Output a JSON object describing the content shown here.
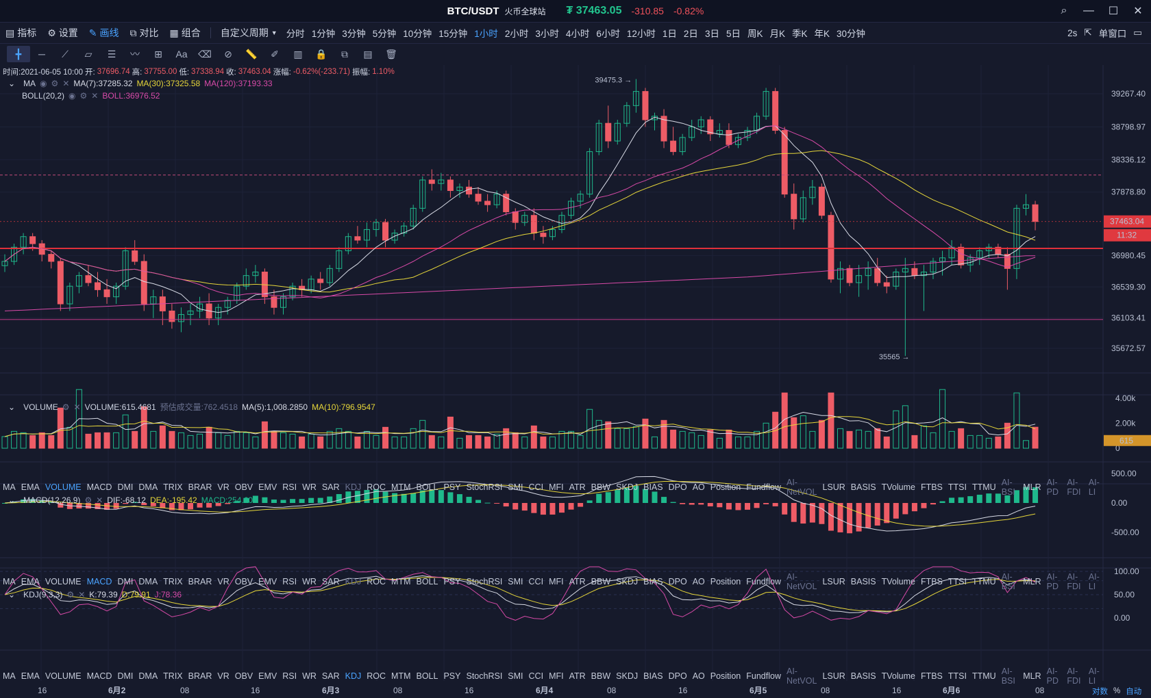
{
  "window": {
    "symbol": "BTC/USDT",
    "exchange": "火币全球站",
    "price": "₮ 37463.05",
    "change": "-310.85",
    "change_pct": "-0.82%"
  },
  "toolbar": {
    "indicator": "指标",
    "settings": "设置",
    "draw": "画线",
    "compare": "对比",
    "combo": "组合",
    "custom_period": "自定义周期",
    "periods": [
      "分时",
      "1分钟",
      "3分钟",
      "5分钟",
      "10分钟",
      "15分钟",
      "1小时",
      "2小时",
      "3小时",
      "4小时",
      "6小时",
      "12小时",
      "1日",
      "2日",
      "3日",
      "5日",
      "周K",
      "月K",
      "季K",
      "年K",
      "30分钟"
    ],
    "active_period": "1小时",
    "refresh": "2s",
    "single_window": "单窗口"
  },
  "ohlc": {
    "time": "时间:2021-06-05 10:00",
    "open_lbl": "开:",
    "open": "37696.74",
    "high_lbl": "高:",
    "high": "37755.00",
    "low_lbl": "低:",
    "low": "37338.94",
    "close_lbl": "收:",
    "close": "37463.04",
    "chg_lbl": "涨幅:",
    "chg": "-0.62%(-233.71)",
    "amp_lbl": "振幅:",
    "amp": "1.10%"
  },
  "ma_legend": {
    "name": "MA",
    "ma7": "MA(7):37285.32",
    "ma30": "MA(30):37325.58",
    "ma120": "MA(120):37193.33"
  },
  "boll_legend": {
    "name": "BOLL(20,2)",
    "boll": "BOLL:36976.52"
  },
  "price_axis": [
    "39267.40",
    "38798.97",
    "38336.12",
    "37878.80",
    "37463.04",
    "36980.45",
    "36539.30",
    "36103.41",
    "35672.57"
  ],
  "last_price_tag": "37463.04",
  "countdown_tag": "11:32",
  "high_marker": "39475.3",
  "low_marker": "35565",
  "volume_legend": {
    "name": "VOLUME",
    "vol": "VOLUME:615.4681",
    "est_lbl": "预估成交量:",
    "est": "762.4518",
    "ma5": "MA(5):1,008.2850",
    "ma10": "MA(10):796.9547"
  },
  "volume_axis": [
    "4.00k",
    "2.00k",
    "0"
  ],
  "volume_tag": "615",
  "indicator_tabs": [
    "MA",
    "EMA",
    "VOLUME",
    "MACD",
    "DMI",
    "DMA",
    "TRIX",
    "BRAR",
    "VR",
    "OBV",
    "EMV",
    "RSI",
    "WR",
    "SAR",
    "KDJ",
    "ROC",
    "MTM",
    "BOLL",
    "PSY",
    "StochRSI",
    "SMI",
    "CCI",
    "MFI",
    "ATR",
    "BBW",
    "SKDJ",
    "BIAS",
    "DPO",
    "AO",
    "Position",
    "Fundflow",
    "AI-NetVOL",
    "LSUR",
    "BASIS",
    "TVolume",
    "FTBS",
    "TTSI",
    "TTMU",
    "AI-BSI",
    "MLR",
    "AI-PD",
    "AI-FDI",
    "AI-LI"
  ],
  "macd_legend": {
    "name": "MACD(12,26,9)",
    "dif": "DIF:-68.12",
    "dea": "DEA:-195.42",
    "macd": "MACD:254.60"
  },
  "macd_axis": [
    "500.00",
    "0.00",
    "-500.00"
  ],
  "kdj_legend": {
    "name": "KDJ(9,3,3)",
    "k": "K:79.39",
    "d": "D:79.91",
    "j": "J:78.36"
  },
  "kdj_axis": [
    "100.00",
    "50.00",
    "0.00"
  ],
  "time_axis": [
    "16",
    "6月2",
    "08",
    "16",
    "6月3",
    "08",
    "16",
    "6月4",
    "08",
    "16",
    "6月5",
    "08",
    "16",
    "6月6",
    "08"
  ],
  "bottom_right": {
    "log": "对数",
    "pct": "%",
    "auto": "自动"
  },
  "colors": {
    "up": "#1fb98c",
    "down": "#ee5c66",
    "ma7": "#d8dbe6",
    "ma30": "#e6d63a",
    "ma120": "#d84aa8",
    "accent": "#4aa3ff"
  },
  "chart_data": {
    "type": "candlestick",
    "candles": [
      [
        36840,
        37000,
        36750,
        36900
      ],
      [
        36900,
        37150,
        36850,
        37100
      ],
      [
        37100,
        37300,
        37000,
        37250
      ],
      [
        37250,
        37300,
        37050,
        37150
      ],
      [
        37150,
        37200,
        36900,
        37000
      ],
      [
        37000,
        37050,
        36800,
        36900
      ],
      [
        36900,
        36950,
        36200,
        36300
      ],
      [
        36300,
        36600,
        36200,
        36550
      ],
      [
        36550,
        36750,
        36450,
        36700
      ],
      [
        36700,
        36850,
        36550,
        36600
      ],
      [
        36600,
        36750,
        36400,
        36500
      ],
      [
        36500,
        36650,
        36300,
        36400
      ],
      [
        36400,
        36600,
        36300,
        36550
      ],
      [
        36550,
        37100,
        36500,
        37050
      ],
      [
        37050,
        37200,
        36850,
        36900
      ],
      [
        36900,
        37000,
        36200,
        36300
      ],
      [
        36300,
        36500,
        36100,
        36400
      ],
      [
        36400,
        36500,
        36000,
        36200
      ],
      [
        36200,
        36300,
        35950,
        36050
      ],
      [
        36050,
        36250,
        35900,
        36150
      ],
      [
        36150,
        36300,
        36000,
        36200
      ],
      [
        36200,
        36400,
        36100,
        36300
      ],
      [
        36300,
        36450,
        36000,
        36100
      ],
      [
        36100,
        36300,
        36000,
        36250
      ],
      [
        36250,
        36400,
        36150,
        36350
      ],
      [
        36350,
        36600,
        36300,
        36550
      ],
      [
        36550,
        36800,
        36500,
        36700
      ],
      [
        36700,
        36850,
        36600,
        36750
      ],
      [
        36750,
        36800,
        36300,
        36400
      ],
      [
        36400,
        36500,
        36150,
        36250
      ],
      [
        36250,
        36450,
        36150,
        36400
      ],
      [
        36400,
        36600,
        36350,
        36550
      ],
      [
        36550,
        36650,
        36400,
        36500
      ],
      [
        36500,
        36700,
        36450,
        36650
      ],
      [
        36650,
        36750,
        36500,
        36600
      ],
      [
        36600,
        36850,
        36550,
        36800
      ],
      [
        36800,
        37100,
        36750,
        37050
      ],
      [
        37050,
        37300,
        37000,
        37250
      ],
      [
        37250,
        37400,
        37150,
        37200
      ],
      [
        37200,
        37450,
        37100,
        37350
      ],
      [
        37350,
        37500,
        37250,
        37450
      ],
      [
        37450,
        37500,
        37100,
        37200
      ],
      [
        37200,
        37350,
        37150,
        37300
      ],
      [
        37300,
        37450,
        37250,
        37400
      ],
      [
        37400,
        37700,
        37350,
        37650
      ],
      [
        37650,
        38100,
        37600,
        38050
      ],
      [
        38050,
        38200,
        37900,
        38000
      ],
      [
        38000,
        38150,
        37900,
        38050
      ],
      [
        38050,
        38100,
        37800,
        37900
      ],
      [
        37900,
        38000,
        37800,
        37950
      ],
      [
        37950,
        38050,
        37800,
        37850
      ],
      [
        37850,
        37950,
        37700,
        37750
      ],
      [
        37750,
        37850,
        37600,
        37700
      ],
      [
        37700,
        37900,
        37650,
        37850
      ],
      [
        37850,
        37900,
        37550,
        37600
      ],
      [
        37600,
        37650,
        37350,
        37450
      ],
      [
        37450,
        37600,
        37400,
        37550
      ],
      [
        37550,
        37650,
        37200,
        37300
      ],
      [
        37300,
        37400,
        37150,
        37250
      ],
      [
        37250,
        37400,
        37200,
        37350
      ],
      [
        37350,
        37600,
        37300,
        37550
      ],
      [
        37550,
        37800,
        37500,
        37750
      ],
      [
        37750,
        37900,
        37650,
        37850
      ],
      [
        37850,
        38500,
        37800,
        38450
      ],
      [
        38450,
        38900,
        38400,
        38850
      ],
      [
        38850,
        39100,
        38500,
        38600
      ],
      [
        38600,
        38900,
        38550,
        38850
      ],
      [
        38850,
        39150,
        38800,
        39100
      ],
      [
        39100,
        39475,
        39000,
        39300
      ],
      [
        39300,
        39350,
        38800,
        38900
      ],
      [
        38900,
        39000,
        38750,
        38950
      ],
      [
        38950,
        39050,
        38500,
        38600
      ],
      [
        38600,
        38800,
        38400,
        38450
      ],
      [
        38450,
        38700,
        38400,
        38650
      ],
      [
        38650,
        38900,
        38600,
        38800
      ],
      [
        38800,
        38950,
        38700,
        38900
      ],
      [
        38900,
        38950,
        38600,
        38700
      ],
      [
        38700,
        38850,
        38650,
        38750
      ],
      [
        38750,
        38850,
        38500,
        38550
      ],
      [
        38550,
        38700,
        38500,
        38650
      ],
      [
        38650,
        38800,
        38600,
        38750
      ],
      [
        38750,
        39000,
        38700,
        38950
      ],
      [
        38950,
        39350,
        38900,
        39300
      ],
      [
        39300,
        39350,
        38700,
        38750
      ],
      [
        38750,
        38800,
        37800,
        37850
      ],
      [
        37850,
        38000,
        37350,
        37500
      ],
      [
        37500,
        37900,
        37450,
        37800
      ],
      [
        37800,
        38050,
        37700,
        37950
      ],
      [
        37950,
        38000,
        37500,
        37550
      ],
      [
        37550,
        37600,
        36600,
        36650
      ],
      [
        36650,
        36900,
        36450,
        36800
      ],
      [
        36800,
        36850,
        36550,
        36600
      ],
      [
        36600,
        36850,
        36400,
        36700
      ],
      [
        36700,
        36900,
        36500,
        36800
      ],
      [
        36800,
        36950,
        36550,
        36600
      ],
      [
        36600,
        36700,
        36450,
        36550
      ],
      [
        36550,
        36800,
        36500,
        36750
      ],
      [
        36750,
        36950,
        35565,
        36800
      ],
      [
        36800,
        36900,
        36650,
        36700
      ],
      [
        36700,
        36850,
        36200,
        36750
      ],
      [
        36750,
        36950,
        36650,
        36900
      ],
      [
        36900,
        37050,
        36700,
        36950
      ],
      [
        36950,
        37200,
        36850,
        37100
      ],
      [
        37100,
        37150,
        36800,
        36850
      ],
      [
        36850,
        37000,
        36750,
        36950
      ],
      [
        36950,
        37100,
        36850,
        37050
      ],
      [
        37050,
        37150,
        36950,
        37100
      ],
      [
        37100,
        37150,
        36950,
        37000
      ],
      [
        37000,
        37100,
        36500,
        36800
      ],
      [
        36800,
        37700,
        36650,
        37650
      ],
      [
        37650,
        37850,
        37550,
        37700
      ],
      [
        37700,
        37755,
        37339,
        37463
      ]
    ],
    "high_label": "39475.3",
    "low_label": "35565"
  }
}
